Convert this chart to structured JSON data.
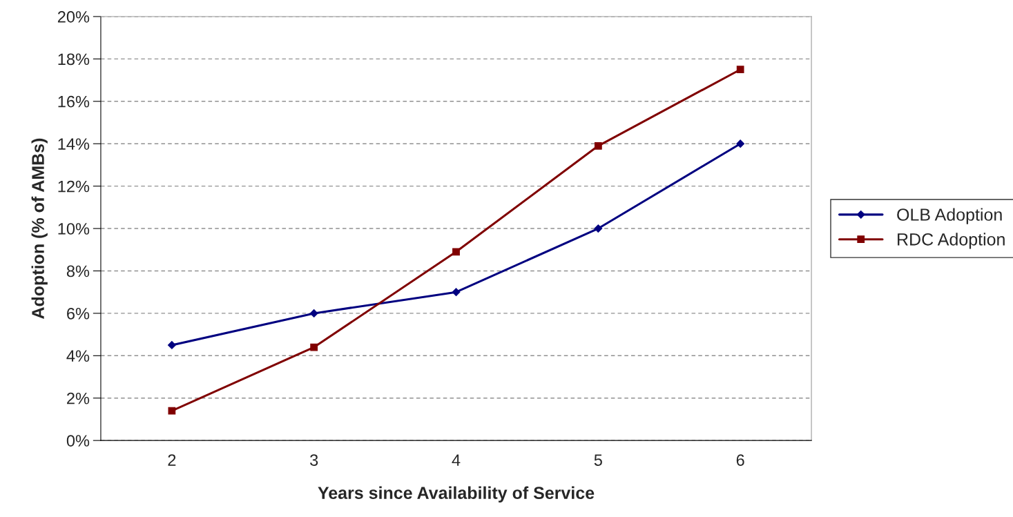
{
  "chart_data": {
    "type": "line",
    "xlabel": "Years since Availability of Service",
    "ylabel": "Adoption (% of AMBs)",
    "categories": [
      "2",
      "3",
      "4",
      "5",
      "6"
    ],
    "series": [
      {
        "name": "OLB Adoption",
        "color": "#000080",
        "marker": "diamond",
        "values": [
          4.5,
          6.0,
          7.0,
          10.0,
          14.0
        ]
      },
      {
        "name": "RDC Adoption",
        "color": "#800000",
        "marker": "square",
        "values": [
          1.4,
          4.4,
          8.9,
          13.9,
          17.5
        ]
      }
    ],
    "ylim": [
      0,
      20
    ],
    "yticks": [
      {
        "value": 0,
        "label": "0%"
      },
      {
        "value": 2,
        "label": "2%"
      },
      {
        "value": 4,
        "label": "4%"
      },
      {
        "value": 6,
        "label": "6%"
      },
      {
        "value": 8,
        "label": "8%"
      },
      {
        "value": 10,
        "label": "10%"
      },
      {
        "value": 12,
        "label": "12%"
      },
      {
        "value": 14,
        "label": "14%"
      },
      {
        "value": 16,
        "label": "16%"
      },
      {
        "value": 18,
        "label": "18%"
      },
      {
        "value": 20,
        "label": "20%"
      }
    ],
    "grid": "y",
    "legend": "right",
    "line_style": "solid"
  }
}
